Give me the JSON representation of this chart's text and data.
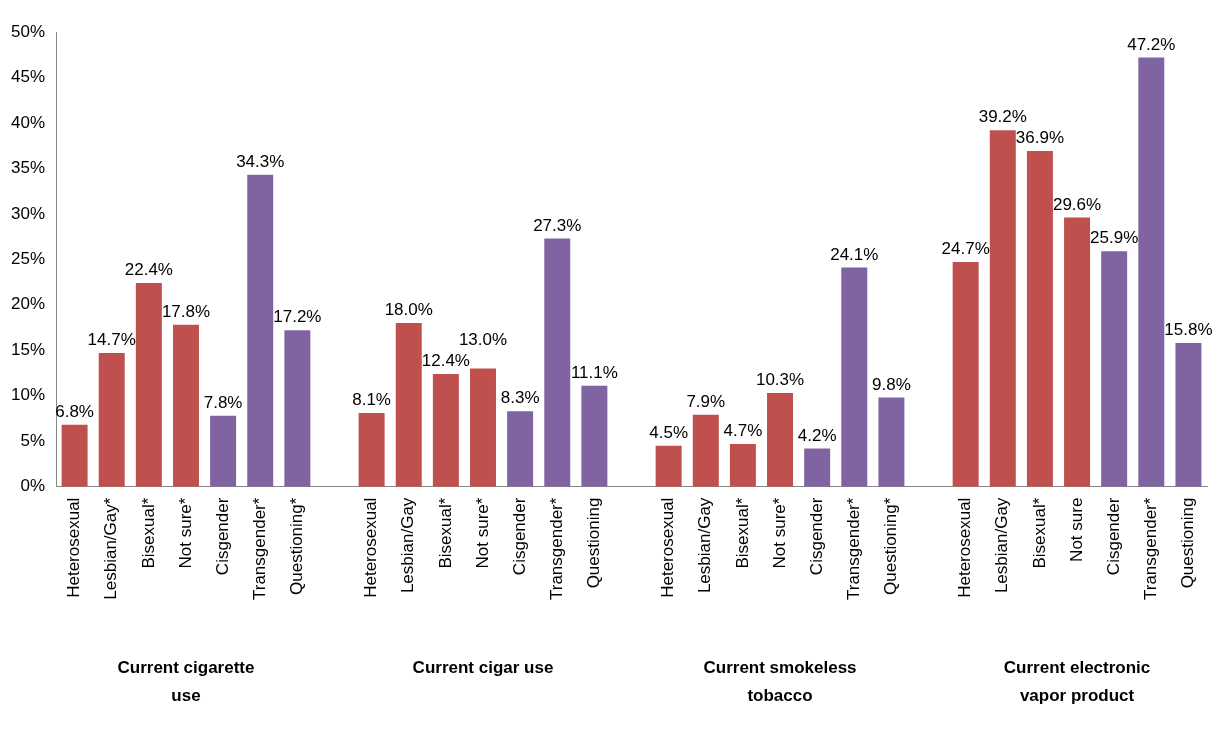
{
  "chart_data": {
    "type": "bar",
    "categories": [
      "Heterosexual",
      "Lesbian/Gay*",
      "Bisexual*",
      "Not sure*",
      "Cisgender",
      "Transgender*",
      "Questioning*",
      null,
      "Heterosexual",
      "Lesbian/Gay",
      "Bisexual*",
      "Not sure*",
      "Cisgender",
      "Transgender*",
      "Questioning",
      null,
      "Heterosexual",
      "Lesbian/Gay",
      "Bisexual*",
      "Not sure*",
      "Cisgender",
      "Transgender*",
      "Questioning*",
      null,
      "Heterosexual",
      "Lesbian/Gay",
      "Bisexual*",
      "Not sure",
      "Cisgender",
      "Transgender*",
      "Questioning"
    ],
    "values": [
      6.8,
      14.7,
      22.4,
      17.8,
      7.8,
      34.3,
      17.2,
      null,
      8.1,
      18.0,
      12.4,
      13.0,
      8.3,
      27.3,
      11.1,
      null,
      4.5,
      7.9,
      4.7,
      10.3,
      4.2,
      24.1,
      9.8,
      null,
      24.7,
      39.2,
      36.9,
      29.6,
      25.9,
      47.2,
      15.8
    ],
    "value_labels": [
      "6.8%",
      "14.7%",
      "22.4%",
      "17.8%",
      "7.8%",
      "34.3%",
      "17.2%",
      null,
      "8.1%",
      "18.0%",
      "12.4%",
      "13.0%",
      "8.3%",
      "27.3%",
      "11.1%",
      null,
      "4.5%",
      "7.9%",
      "4.7%",
      "10.3%",
      "4.2%",
      "24.1%",
      "9.8%",
      null,
      "24.7%",
      "39.2%",
      "36.9%",
      "29.6%",
      "25.9%",
      "47.2%",
      "15.8%"
    ],
    "colors": [
      "#c0504d",
      "#c0504d",
      "#c0504d",
      "#c0504d",
      "#8064a2",
      "#8064a2",
      "#8064a2",
      null,
      "#c0504d",
      "#c0504d",
      "#c0504d",
      "#c0504d",
      "#8064a2",
      "#8064a2",
      "#8064a2",
      null,
      "#c0504d",
      "#c0504d",
      "#c0504d",
      "#c0504d",
      "#8064a2",
      "#8064a2",
      "#8064a2",
      null,
      "#c0504d",
      "#c0504d",
      "#c0504d",
      "#c0504d",
      "#8064a2",
      "#8064a2",
      "#8064a2"
    ],
    "ylim": [
      0,
      50
    ],
    "yticks": [
      {
        "value": 0,
        "label": "0%"
      },
      {
        "value": 5,
        "label": "5%"
      },
      {
        "value": 10,
        "label": "10%"
      },
      {
        "value": 15,
        "label": "15%"
      },
      {
        "value": 20,
        "label": "20%"
      },
      {
        "value": 25,
        "label": "25%"
      },
      {
        "value": 30,
        "label": "30%"
      },
      {
        "value": 35,
        "label": "35%"
      },
      {
        "value": 40,
        "label": "40%"
      },
      {
        "value": 45,
        "label": "45%"
      },
      {
        "value": 50,
        "label": "50%"
      }
    ],
    "annotations": [
      "Current cigarette use",
      "Current cigar use",
      "Current smokeless tobacco",
      "Current electronic vapor product"
    ],
    "grid": false,
    "legend": false
  }
}
